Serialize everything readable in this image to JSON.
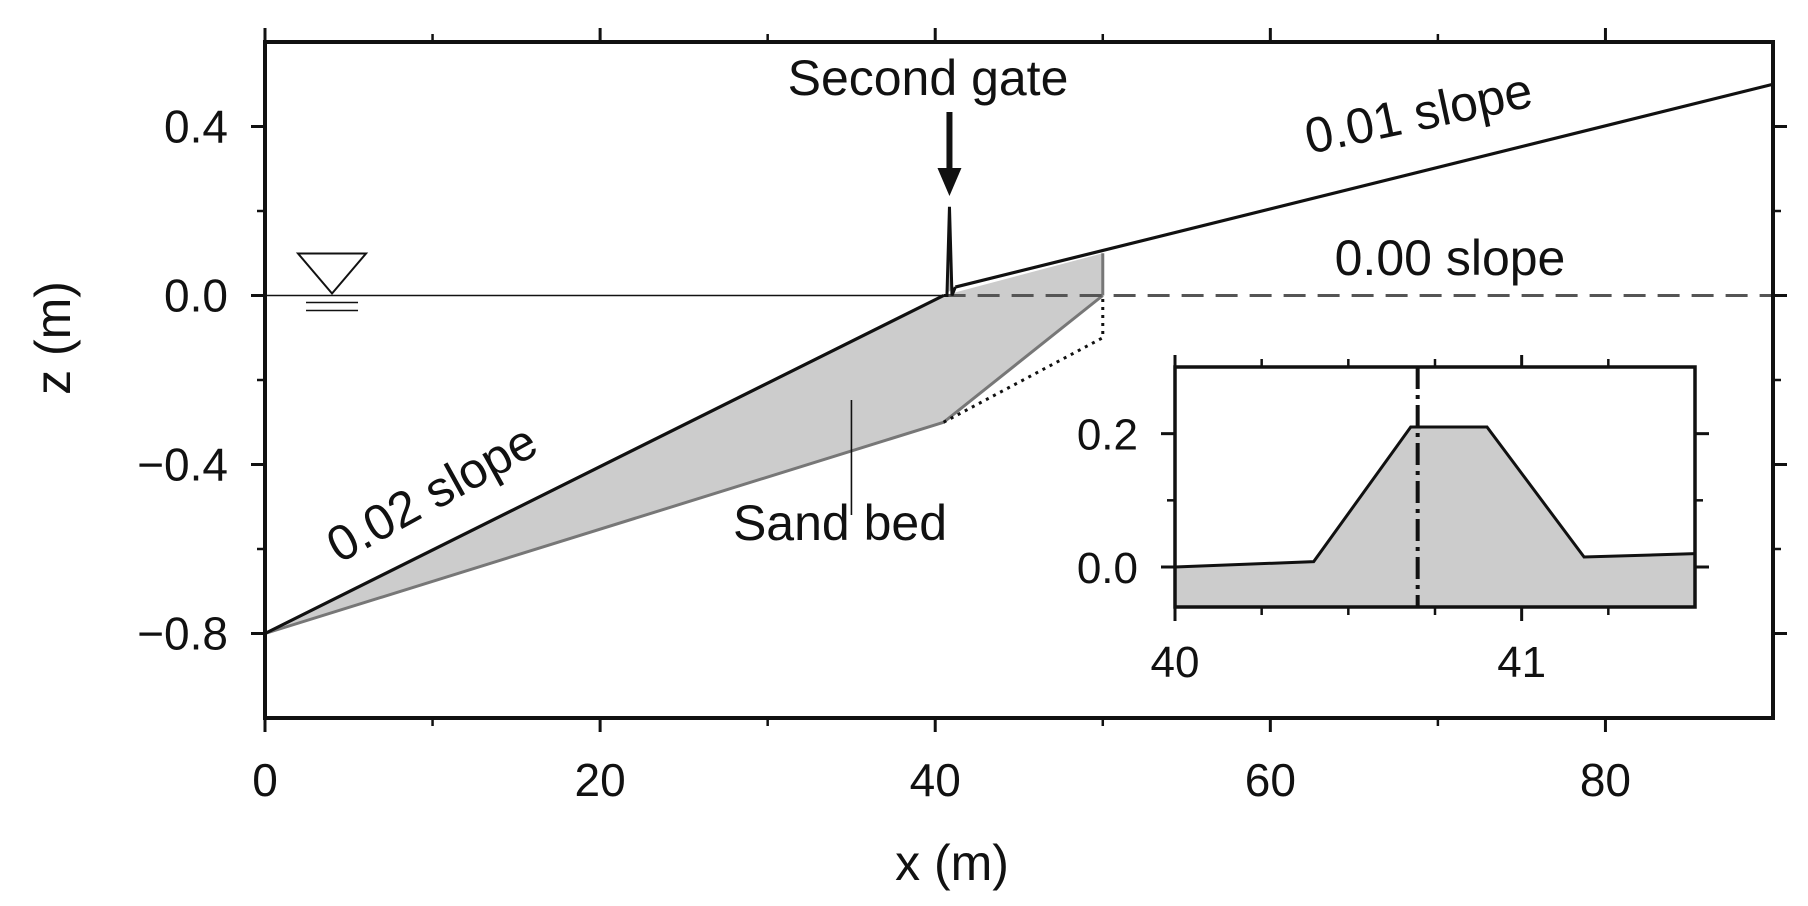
{
  "chart_data": [
    {
      "type": "line",
      "xlabel": "x (m)",
      "ylabel": "z (m)",
      "xlim": [
        0,
        90
      ],
      "ylim": [
        -1.0,
        0.6
      ],
      "xticks": [
        0,
        20,
        40,
        60,
        80
      ],
      "xtick_labels": [
        "0",
        "20",
        "40",
        "60",
        "80"
      ],
      "yticks": [
        0.4,
        0.0,
        -0.4,
        -0.8
      ],
      "ytick_labels": [
        "0.4",
        "0.0",
        "−0.4",
        "−0.8"
      ],
      "grid": false,
      "series": [
        {
          "name": "0.02 slope",
          "x": [
            0,
            40.5
          ],
          "y": [
            -0.8,
            0.0
          ]
        },
        {
          "name": "0.01 slope",
          "x": [
            41.2,
            90
          ],
          "y": [
            0.02,
            0.5
          ]
        },
        {
          "name": "0.00 slope",
          "x": [
            40.5,
            90
          ],
          "y": [
            0.0,
            0.0
          ]
        },
        {
          "name": "Second gate",
          "x": [
            40.5,
            40.7,
            40.85,
            41.0,
            41.2
          ],
          "y": [
            0.0,
            0.0,
            0.21,
            0.0,
            0.02
          ]
        },
        {
          "name": "Sand bed",
          "x": [
            0,
            40.5,
            50,
            50,
            40.5,
            0
          ],
          "y": [
            -0.8,
            0.0,
            0.1,
            0.0,
            -0.3,
            -0.8
          ]
        },
        {
          "x": [
            40.5,
            50,
            50
          ],
          "y": [
            -0.3,
            -0.1,
            0.0
          ]
        }
      ],
      "annotations": [
        "Second gate",
        "0.01 slope",
        "0.00 slope",
        "0.02 slope",
        "Sand bed"
      ]
    },
    {
      "type": "area",
      "xlim": [
        40,
        41.5
      ],
      "ylim": [
        -0.06,
        0.3
      ],
      "xticks": [
        40,
        41
      ],
      "xtick_labels": [
        "40",
        "41"
      ],
      "yticks": [
        0.0,
        0.2
      ],
      "ytick_labels": [
        "0.0",
        "0.2"
      ],
      "series": [
        {
          "x": [
            40,
            40.4,
            40.68,
            40.9,
            41.18,
            41.5
          ],
          "y": [
            0.0,
            0.008,
            0.21,
            0.21,
            0.015,
            0.02
          ]
        }
      ],
      "vline_x": 40.7
    }
  ]
}
